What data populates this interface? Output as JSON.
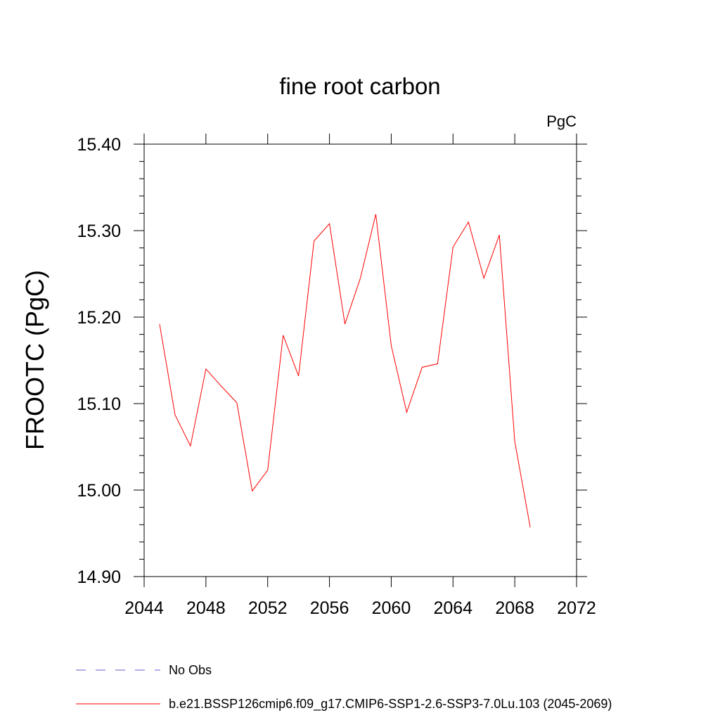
{
  "chart_data": {
    "type": "line",
    "title": "fine root carbon",
    "units": "PgC",
    "xlabel": "",
    "ylabel": "FROOTC  (PgC)",
    "xlim": [
      2044,
      2072
    ],
    "ylim": [
      14.9,
      15.4
    ],
    "xticks": [
      "2044",
      "2048",
      "2052",
      "2056",
      "2060",
      "2064",
      "2068",
      "2072"
    ],
    "yticks": [
      "14.90",
      "15.00",
      "15.10",
      "15.20",
      "15.30",
      "15.40"
    ],
    "series": [
      {
        "name": "b.e21.BSSP126cmip6.f09_g17.CMIP6-SSP1-2.6-SSP3-7.0Lu.103 (2045-2069)",
        "color": "#ff0000",
        "x": [
          2045,
          2046,
          2047,
          2048,
          2049,
          2050,
          2051,
          2052,
          2053,
          2054,
          2055,
          2056,
          2057,
          2058,
          2059,
          2060,
          2061,
          2062,
          2063,
          2064,
          2065,
          2066,
          2067,
          2068,
          2069
        ],
        "values": [
          15.192,
          15.087,
          15.051,
          15.14,
          15.12,
          15.101,
          14.999,
          15.023,
          15.179,
          15.132,
          15.288,
          15.308,
          15.192,
          15.245,
          15.319,
          15.167,
          15.09,
          15.142,
          15.146,
          15.281,
          15.31,
          15.245,
          15.295,
          15.056,
          14.957
        ]
      }
    ],
    "legend": [
      {
        "label": "No Obs",
        "style": "dashed",
        "color": "#6a5acd"
      },
      {
        "label": "b.e21.BSSP126cmip6.f09_g17.CMIP6-SSP1-2.6-SSP3-7.0Lu.103 (2045-2069)",
        "style": "solid",
        "color": "#ff0000"
      }
    ],
    "legend_position": "bottom-left"
  }
}
